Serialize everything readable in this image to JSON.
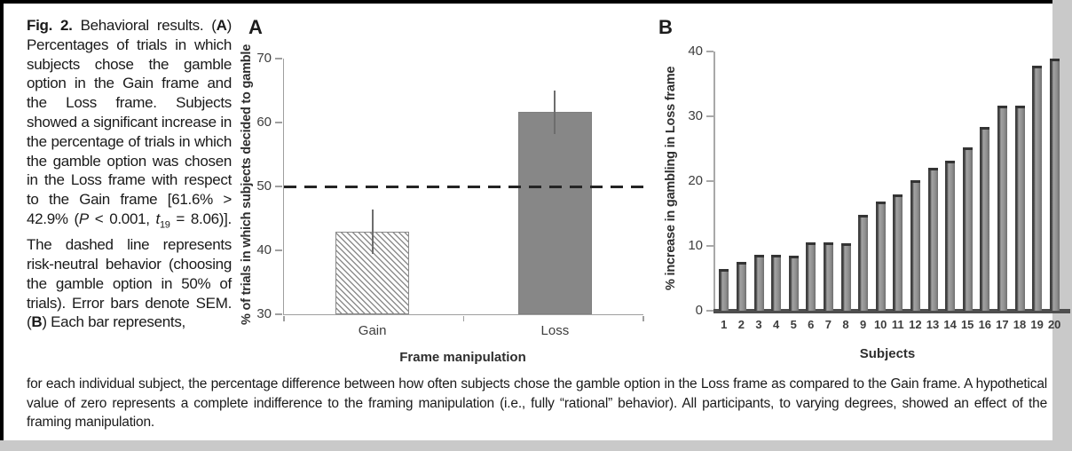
{
  "page": {
    "background_color": "#c9c9c9",
    "card_background": "#ffffff",
    "frame_border_color": "#000000"
  },
  "caption": {
    "left_segments": [
      {
        "text": "Fig. 2. ",
        "bold": true
      },
      {
        "text": "Behavioral results. ("
      },
      {
        "text": "A",
        "bold": true
      },
      {
        "text": ") Percentages of trials in which subjects chose the gamble option in the Gain frame and the Loss frame. Subjects showed a significant increase in the percentage of trials in which the gamble option was chosen in the Loss frame with respect to the Gain frame [61.6% > 42.9% ("
      },
      {
        "text": "P",
        "italic": true
      },
      {
        "text": " < 0.001, "
      },
      {
        "text": "t",
        "italic": true
      },
      {
        "text": "19",
        "sub": true
      },
      {
        "text": " = 8.06)]. The dashed line represents risk-neutral behavior (choosing the gamble option in 50% of trials). Error bars denote SEM. ("
      },
      {
        "text": "B",
        "bold": true
      },
      {
        "text": ") Each bar represents,"
      }
    ],
    "bottom_text": "for each individual subject, the percentage difference between how often subjects chose the gamble option in the Loss frame as compared to the Gain frame. A hypothetical value of zero represents a complete indifference to the framing manipulation (i.e., fully “rational” behavior). All participants, to varying degrees, showed an effect of the framing manipulation."
  },
  "chart_data": [
    {
      "type": "bar",
      "panel_label": "A",
      "categories": [
        "Gain",
        "Loss"
      ],
      "values": [
        42.9,
        61.6
      ],
      "errors_sem": [
        3.5,
        3.4
      ],
      "bar_styles": [
        "hatched",
        "solid"
      ],
      "bar_color": "#878787",
      "hatch_color": "#8d8d8d",
      "error_bar_color": "#6d6d6d",
      "xlabel": "Frame manipulation",
      "ylabel": "% of trials in which subjects decided to gamble",
      "ylim": [
        30,
        70
      ],
      "yticks": [
        30,
        40,
        50,
        60,
        70
      ],
      "reference_line": {
        "value": 50,
        "style": "dashed",
        "color": "#242424",
        "meaning": "risk-neutral behavior"
      },
      "grid": false,
      "legend": false
    },
    {
      "type": "bar",
      "panel_label": "B",
      "categories": [
        "1",
        "2",
        "3",
        "4",
        "5",
        "6",
        "7",
        "8",
        "9",
        "10",
        "11",
        "12",
        "13",
        "14",
        "15",
        "16",
        "17",
        "18",
        "19",
        "20"
      ],
      "values": [
        6.5,
        7.6,
        8.6,
        8.6,
        8.5,
        10.6,
        10.6,
        10.4,
        14.8,
        16.9,
        17.9,
        20.1,
        22.1,
        23.1,
        25.2,
        28.4,
        31.6,
        31.6,
        37.8,
        38.9
      ],
      "bar_color": "#8e8e8e",
      "bar_edge_color": "#404040",
      "xlabel": "Subjects",
      "ylabel": "% increase in gambling in Loss frame",
      "ylim": [
        0,
        40
      ],
      "yticks": [
        0,
        10,
        20,
        30,
        40
      ],
      "grid": false,
      "legend": false
    }
  ]
}
